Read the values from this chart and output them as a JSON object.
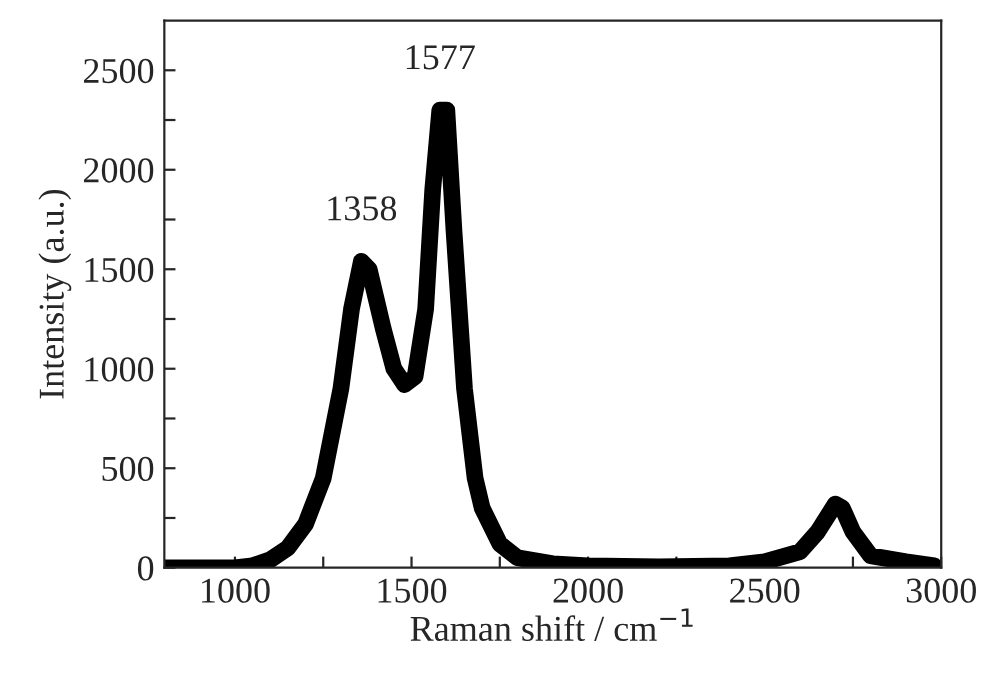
{
  "chart_data": {
    "type": "line",
    "xlabel": "Raman shift / cm$^{−1}$",
    "ylabel": "Intensity (a.u.)",
    "xlim": [
      800,
      3000
    ],
    "ylim": [
      0,
      2750
    ],
    "xticks": [
      {
        "value": 1000,
        "label": "1000"
      },
      {
        "value": 1250,
        "label": null
      },
      {
        "value": 1500,
        "label": "1500"
      },
      {
        "value": 1750,
        "label": null
      },
      {
        "value": 2000,
        "label": "2000"
      },
      {
        "value": 2250,
        "label": null
      },
      {
        "value": 2500,
        "label": "2500"
      },
      {
        "value": 2750,
        "label": null
      },
      {
        "value": 3000,
        "label": "3000"
      }
    ],
    "yticks": [
      0,
      {
        "value": 250,
        "label": null
      },
      500,
      {
        "value": 750,
        "label": null
      },
      1000,
      {
        "value": 1250,
        "label": null
      },
      1500,
      {
        "value": 1750,
        "label": null
      },
      2000,
      {
        "value": 2250,
        "label": null
      },
      2500
    ],
    "series": [
      {
        "color": "#000000",
        "x": [
          800,
          1000,
          1050,
          1100,
          1150,
          1200,
          1250,
          1300,
          1330,
          1358,
          1380,
          1420,
          1450,
          1480,
          1510,
          1540,
          1560,
          1580,
          1600,
          1620,
          1650,
          1680,
          1700,
          1750,
          1800,
          1900,
          2000,
          2200,
          2400,
          2500,
          2600,
          2650,
          2700,
          2720,
          2750,
          2800,
          2900,
          2980
        ],
        "values": [
          0,
          0,
          10,
          40,
          100,
          220,
          450,
          900,
          1300,
          1540,
          1500,
          1200,
          1000,
          920,
          960,
          1300,
          1900,
          2300,
          2300,
          1700,
          900,
          450,
          300,
          120,
          50,
          20,
          10,
          5,
          10,
          30,
          80,
          180,
          320,
          300,
          180,
          60,
          30,
          10
        ]
      }
    ],
    "annotations": [
      {
        "text": "1358",
        "x": 1358,
        "y": 1540
      },
      {
        "text": "1577",
        "x": 1580,
        "y": 2300
      }
    ],
    "grid": false,
    "legend": false
  }
}
